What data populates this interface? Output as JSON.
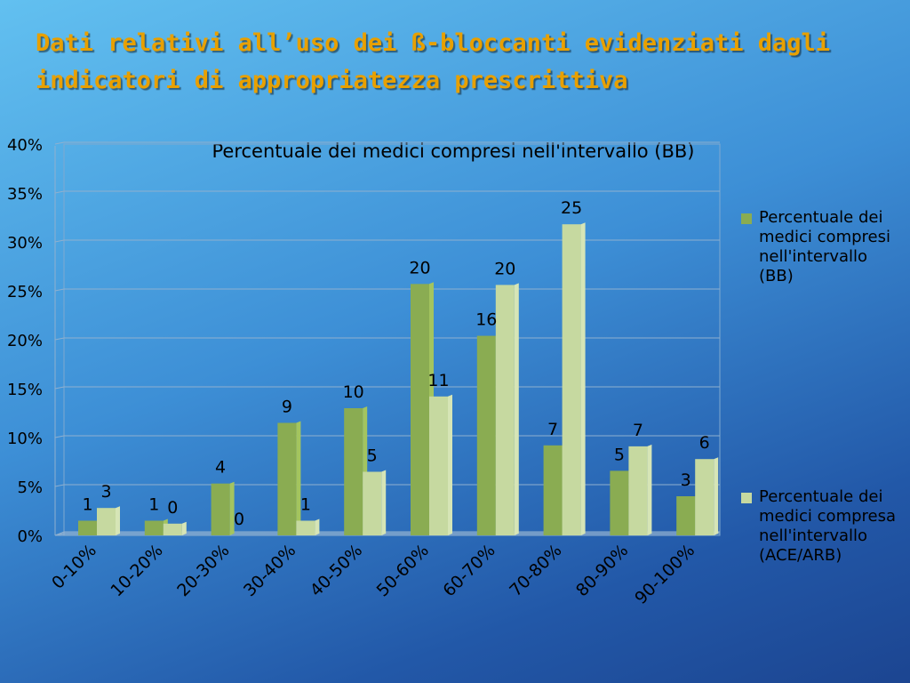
{
  "slide": {
    "title": "Dati relativi all’uso dei ß-bloccanti evidenziati dagli indicatori di appropriatezza prescrittiva"
  },
  "colors": {
    "bb": "#8aac52",
    "bb_side": "#a3c45f",
    "ace": "#c6d9a0",
    "ace_side": "#d6e5b6",
    "title": "#e8a000"
  },
  "chart_data": {
    "type": "bar",
    "title": "Percentuale dei medici compresi nell'intervallo (BB)",
    "categories": [
      "0-10%",
      "10-20%",
      "20-30%",
      "30-40%",
      "40-50%",
      "50-60%",
      "60-70%",
      "70-80%",
      "80-90%",
      "90-100%"
    ],
    "y_ticks": [
      "0%",
      "5%",
      "10%",
      "15%",
      "20%",
      "25%",
      "30%",
      "35%",
      "40%"
    ],
    "ylim": [
      0,
      40
    ],
    "grid": true,
    "legend_position": "right",
    "series": [
      {
        "name": "Percentuale dei medici compresi nell'intervallo (BB)",
        "values": [
          1.5,
          1.5,
          5.3,
          11.5,
          13,
          25.7,
          20.4,
          9.2,
          6.6,
          4
        ],
        "labels": [
          "1",
          "1",
          "4",
          "9",
          "10",
          "20",
          "16",
          "7",
          "5",
          "3"
        ]
      },
      {
        "name": "Percentuale dei medici compresa nell'intervallo (ACE/ARB)",
        "values": [
          2.8,
          1.2,
          0,
          1.5,
          6.5,
          14.2,
          25.6,
          31.8,
          9.1,
          7.8
        ],
        "labels": [
          "3",
          "0",
          "0",
          "1",
          "5",
          "11",
          "20",
          "25",
          "7",
          "6"
        ]
      }
    ]
  }
}
